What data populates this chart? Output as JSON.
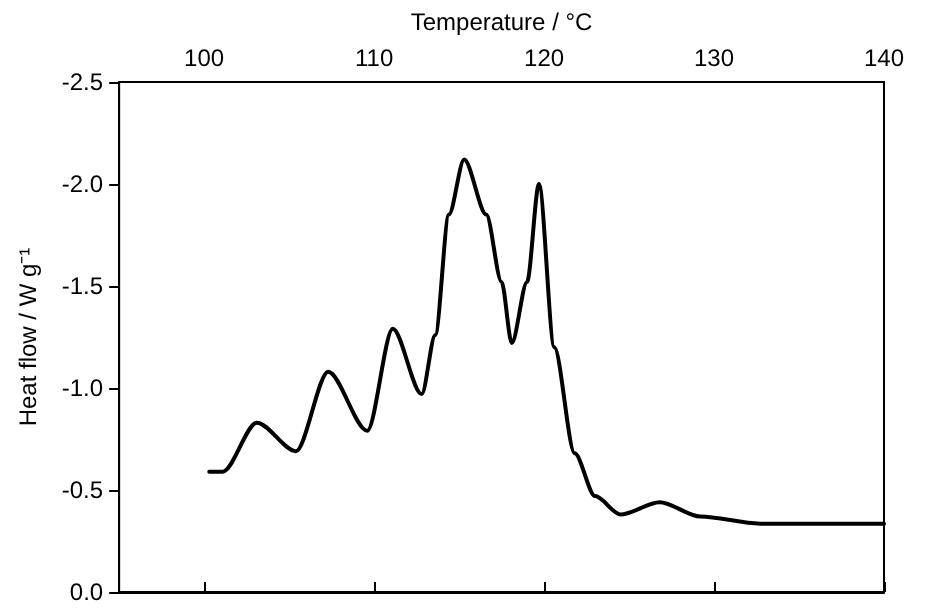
{
  "chart_data": {
    "type": "line",
    "xlabel": "Temperature / °C",
    "ylabel": "Heat flow / W g⁻¹",
    "xlim": [
      95,
      140
    ],
    "xticks": [
      100,
      110,
      120,
      130,
      140
    ],
    "ylim": [
      0,
      -2.5
    ],
    "yticks": [
      {
        "value": 0,
        "label": "0.0"
      },
      -0.5,
      {
        "value": -1,
        "label": "-1.0"
      },
      -1.5,
      {
        "value": -2,
        "label": "-2.0"
      },
      -2.5
    ],
    "marker": "none",
    "line_style": "solid",
    "series": [
      {
        "color": "#000000",
        "x": [
          100.3,
          101.1,
          103.1,
          105.4,
          107.3,
          109.6,
          111.1,
          112.8,
          113.6,
          114.4,
          115.3,
          116.6,
          117.5,
          118.1,
          119.0,
          119.7,
          120.6,
          121.8,
          123.0,
          124.5,
          126.8,
          129.2,
          132.7,
          140
        ],
        "values": [
          -0.59,
          -0.59,
          -0.83,
          -0.69,
          -1.08,
          -0.79,
          -1.29,
          -0.97,
          -1.26,
          -1.85,
          -2.12,
          -1.85,
          -1.52,
          -1.22,
          -1.52,
          -2.0,
          -1.2,
          -0.68,
          -0.47,
          -0.38,
          -0.44,
          -0.37,
          -0.335,
          -0.335
        ]
      }
    ]
  }
}
